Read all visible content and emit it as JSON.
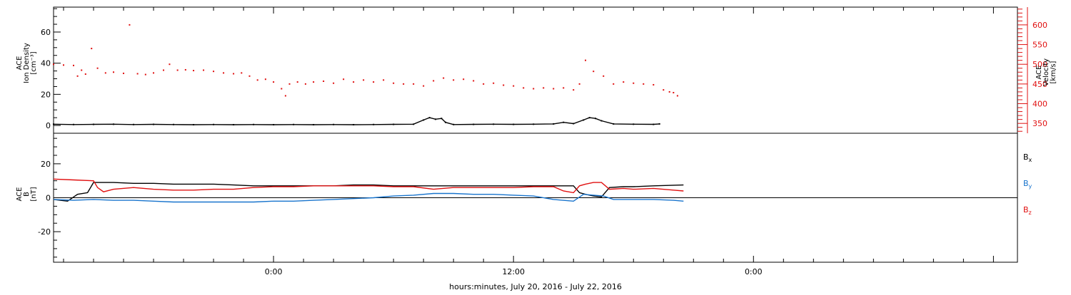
{
  "chart_data": [
    {
      "type": "scatter",
      "ylabel_lines": [
        "ACE",
        "Ion Density",
        "[cm⁻³]"
      ],
      "ylim": [
        -5,
        76
      ],
      "yticks": [
        0,
        20,
        40,
        60
      ],
      "right_axis": {
        "label_lines": [
          "ACE",
          "Velocity",
          "[km/s]"
        ],
        "ylim": [
          325,
          645
        ],
        "ticks": [
          350,
          400,
          450,
          500,
          550,
          600
        ],
        "color": "#e01010"
      },
      "series": [
        {
          "axis": "left",
          "color": "#000000",
          "points": [
            [
              -11,
              0.8
            ],
            [
              -10,
              0.6
            ],
            [
              -9,
              0.7
            ],
            [
              -8,
              0.8
            ],
            [
              -7,
              0.6
            ],
            [
              -6,
              0.7
            ],
            [
              -5,
              0.6
            ],
            [
              -4,
              0.5
            ],
            [
              -3,
              0.6
            ],
            [
              -2,
              0.5
            ],
            [
              -1,
              0.6
            ],
            [
              0,
              0.5
            ],
            [
              1,
              0.6
            ],
            [
              2,
              0.5
            ],
            [
              3,
              0.6
            ],
            [
              4,
              0.5
            ],
            [
              5,
              0.6
            ],
            [
              6,
              0.7
            ],
            [
              7,
              0.8
            ],
            [
              7.5,
              3.5
            ],
            [
              7.8,
              5
            ],
            [
              8.1,
              4
            ],
            [
              8.4,
              4.5
            ],
            [
              8.6,
              2
            ],
            [
              9,
              0.6
            ],
            [
              10,
              0.7
            ],
            [
              11,
              0.8
            ],
            [
              12,
              0.7
            ],
            [
              13,
              0.8
            ],
            [
              14,
              1
            ],
            [
              14.5,
              2
            ],
            [
              15,
              1.2
            ],
            [
              15.5,
              3.5
            ],
            [
              15.8,
              5
            ],
            [
              16.1,
              4.5
            ],
            [
              16.4,
              3
            ],
            [
              17,
              1
            ],
            [
              18,
              0.8
            ],
            [
              19,
              0.7
            ],
            [
              19.3,
              1
            ]
          ]
        },
        {
          "axis": "right",
          "color": "#e01010",
          "points": [
            [
              -11,
              500
            ],
            [
              -10.5,
              498
            ],
            [
              -10,
              497
            ],
            [
              -9.8,
              470
            ],
            [
              -9.6,
              485
            ],
            [
              -9.4,
              475
            ],
            [
              -9.1,
              540
            ],
            [
              -8.8,
              490
            ],
            [
              -8.4,
              478
            ],
            [
              -8,
              480
            ],
            [
              -7.5,
              477
            ],
            [
              -7.2,
              600
            ],
            [
              -6.8,
              476
            ],
            [
              -6.4,
              474
            ],
            [
              -6,
              478
            ],
            [
              -5.5,
              485
            ],
            [
              -5.2,
              500
            ],
            [
              -4.8,
              485
            ],
            [
              -4.4,
              486
            ],
            [
              -4,
              484
            ],
            [
              -3.5,
              485
            ],
            [
              -3,
              482
            ],
            [
              -2.5,
              478
            ],
            [
              -2,
              476
            ],
            [
              -1.6,
              478
            ],
            [
              -1.2,
              470
            ],
            [
              -0.8,
              460
            ],
            [
              -0.4,
              462
            ],
            [
              0,
              455
            ],
            [
              0.4,
              438
            ],
            [
              0.6,
              420
            ],
            [
              0.8,
              450
            ],
            [
              1.2,
              455
            ],
            [
              1.6,
              450
            ],
            [
              2,
              455
            ],
            [
              2.5,
              457
            ],
            [
              3,
              452
            ],
            [
              3.5,
              462
            ],
            [
              4,
              455
            ],
            [
              4.5,
              460
            ],
            [
              5,
              455
            ],
            [
              5.5,
              460
            ],
            [
              6,
              452
            ],
            [
              6.5,
              450
            ],
            [
              7,
              450
            ],
            [
              7.5,
              445
            ],
            [
              8,
              458
            ],
            [
              8.5,
              465
            ],
            [
              9,
              460
            ],
            [
              9.5,
              462
            ],
            [
              10,
              458
            ],
            [
              10.5,
              450
            ],
            [
              11,
              452
            ],
            [
              11.5,
              447
            ],
            [
              12,
              445
            ],
            [
              12.5,
              440
            ],
            [
              13,
              438
            ],
            [
              13.5,
              440
            ],
            [
              14,
              438
            ],
            [
              14.5,
              440
            ],
            [
              15,
              435
            ],
            [
              15.3,
              450
            ],
            [
              15.6,
              510
            ],
            [
              16,
              482
            ],
            [
              16.5,
              470
            ],
            [
              17,
              450
            ],
            [
              17.5,
              455
            ],
            [
              18,
              452
            ],
            [
              18.5,
              450
            ],
            [
              19,
              448
            ],
            [
              19.5,
              435
            ],
            [
              19.8,
              430
            ],
            [
              20,
              428
            ],
            [
              20.2,
              420
            ]
          ]
        }
      ]
    },
    {
      "type": "line",
      "ylabel_lines": [
        "ACE",
        "B",
        "[nT]"
      ],
      "ylim": [
        -38,
        38
      ],
      "yticks": [
        -20,
        0,
        20
      ],
      "zero_line": true,
      "series": [
        {
          "name": "Bx",
          "color": "#000000",
          "points": [
            [
              -11,
              -1
            ],
            [
              -10.3,
              -2
            ],
            [
              -9.8,
              2
            ],
            [
              -9.3,
              3
            ],
            [
              -9,
              9
            ],
            [
              -8,
              9
            ],
            [
              -7,
              8.5
            ],
            [
              -6,
              8.5
            ],
            [
              -5,
              8
            ],
            [
              -4,
              8
            ],
            [
              -3,
              8
            ],
            [
              -2,
              7.5
            ],
            [
              -1,
              7
            ],
            [
              0,
              7
            ],
            [
              1,
              7
            ],
            [
              2,
              7
            ],
            [
              3,
              7
            ],
            [
              4,
              7.5
            ],
            [
              5,
              7.5
            ],
            [
              6,
              7
            ],
            [
              7,
              7
            ],
            [
              8,
              7
            ],
            [
              9,
              7
            ],
            [
              10,
              7
            ],
            [
              11,
              7
            ],
            [
              12,
              7
            ],
            [
              13,
              7
            ],
            [
              14,
              7
            ],
            [
              15,
              7
            ],
            [
              15.3,
              3
            ],
            [
              15.6,
              2
            ],
            [
              16,
              1
            ],
            [
              16.4,
              0.5
            ],
            [
              16.8,
              6
            ],
            [
              17.5,
              6.5
            ],
            [
              18,
              6.5
            ],
            [
              19,
              7
            ],
            [
              20.5,
              7.5
            ]
          ]
        },
        {
          "name": "By",
          "color": "#1874cd",
          "points": [
            [
              -11,
              -1
            ],
            [
              -10,
              -1.5
            ],
            [
              -9,
              -1
            ],
            [
              -8,
              -1.5
            ],
            [
              -7,
              -1.5
            ],
            [
              -6,
              -2
            ],
            [
              -5,
              -2.5
            ],
            [
              -4,
              -2.5
            ],
            [
              -3,
              -2.5
            ],
            [
              -2,
              -2.5
            ],
            [
              -1,
              -2.5
            ],
            [
              0,
              -2
            ],
            [
              1,
              -2
            ],
            [
              2,
              -1.5
            ],
            [
              3,
              -1
            ],
            [
              4,
              -0.5
            ],
            [
              5,
              0
            ],
            [
              6,
              1
            ],
            [
              7,
              1.5
            ],
            [
              8,
              2.5
            ],
            [
              9,
              2.5
            ],
            [
              10,
              2
            ],
            [
              11,
              2
            ],
            [
              12,
              1.5
            ],
            [
              13,
              1
            ],
            [
              14,
              -1
            ],
            [
              15,
              -2
            ],
            [
              15.5,
              2
            ],
            [
              16,
              1.5
            ],
            [
              16.5,
              1
            ],
            [
              17,
              -1
            ],
            [
              18,
              -1
            ],
            [
              19,
              -1
            ],
            [
              20,
              -1.5
            ],
            [
              20.5,
              -2
            ]
          ]
        },
        {
          "name": "Bz",
          "color": "#e01010",
          "points": [
            [
              -11,
              11
            ],
            [
              -10,
              10.5
            ],
            [
              -9,
              10
            ],
            [
              -8.8,
              6
            ],
            [
              -8.5,
              3.5
            ],
            [
              -8,
              5
            ],
            [
              -7,
              6
            ],
            [
              -6,
              5
            ],
            [
              -5,
              4.5
            ],
            [
              -4,
              4.5
            ],
            [
              -3,
              5
            ],
            [
              -2,
              5
            ],
            [
              -1,
              6
            ],
            [
              0,
              6.5
            ],
            [
              1,
              6.5
            ],
            [
              2,
              7
            ],
            [
              3,
              7
            ],
            [
              4,
              7
            ],
            [
              5,
              7
            ],
            [
              6,
              6.5
            ],
            [
              7,
              6.5
            ],
            [
              8,
              5
            ],
            [
              9,
              6
            ],
            [
              10,
              6
            ],
            [
              11,
              6
            ],
            [
              12,
              6
            ],
            [
              13,
              6.5
            ],
            [
              14,
              6.5
            ],
            [
              14.5,
              4
            ],
            [
              15,
              3
            ],
            [
              15.3,
              7
            ],
            [
              15.6,
              8
            ],
            [
              16,
              9
            ],
            [
              16.4,
              9
            ],
            [
              16.8,
              5
            ],
            [
              17.5,
              5.5
            ],
            [
              18,
              5
            ],
            [
              19,
              5.5
            ],
            [
              20,
              4.5
            ],
            [
              20.5,
              4
            ]
          ]
        }
      ],
      "legend_placement": "right",
      "legend": [
        {
          "name": "B",
          "sub": "x",
          "color": "#000000"
        },
        {
          "name": "B",
          "sub": "y",
          "color": "#1874cd"
        },
        {
          "name": "B",
          "sub": "z",
          "color": "#e01010"
        }
      ]
    }
  ],
  "shared_x": {
    "unit": "hours relative to 0:00 July 21, 2016",
    "xlim": [
      -11,
      37.2
    ],
    "tick_labels": [
      {
        "x": 0,
        "label": "0:00"
      },
      {
        "x": 12,
        "label": "12:00"
      },
      {
        "x": 24,
        "label": "0:00"
      }
    ],
    "xlabel": "hours:minutes, July 20, 2016 - July 22, 2016"
  },
  "colors": {
    "frame": "#000000",
    "red": "#e01010",
    "blue": "#1874cd"
  }
}
